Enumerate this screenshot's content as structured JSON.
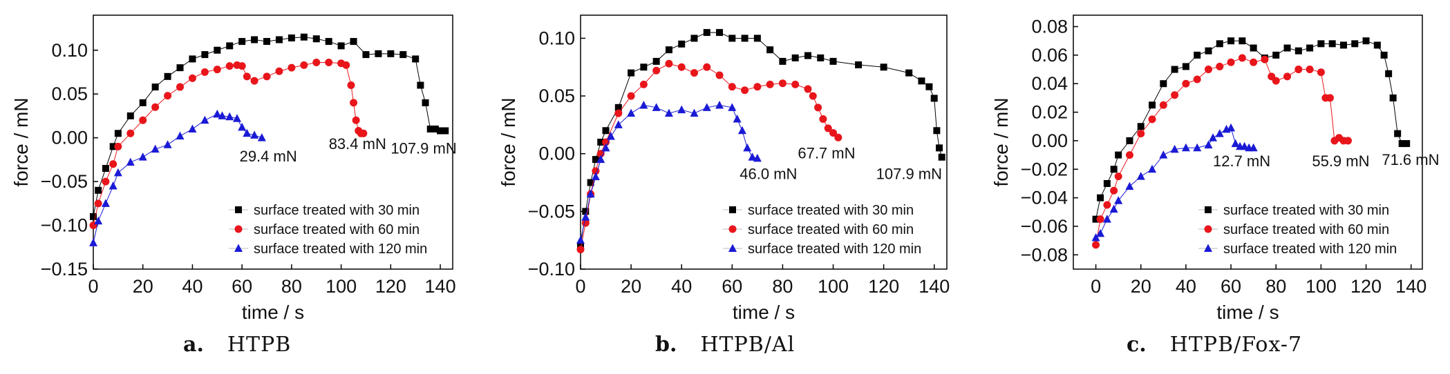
{
  "colors": {
    "s30": "#000000",
    "s60": "#e8151b",
    "s120": "#1a1ad6",
    "axis": "#000000"
  },
  "chart_data": [
    {
      "type": "scatter",
      "panel": "a.",
      "caption": "HTPB",
      "xlabel": "time / s",
      "ylabel": "force / mN",
      "xlim": [
        0,
        145
      ],
      "ylim": [
        -0.15,
        0.14
      ],
      "xticks": [
        0,
        20,
        40,
        60,
        80,
        100,
        120,
        140
      ],
      "yticks": [
        -0.15,
        -0.1,
        -0.05,
        0.0,
        0.05,
        0.1
      ],
      "ytick_labels": [
        "−0.15",
        "−0.10",
        "−0.05",
        "0.00",
        "0.05",
        "0.10"
      ],
      "legend": [
        "surface treated with 30 min",
        "surface treated with 60 min",
        "surface treated with 120 min"
      ],
      "legend_position": "bottom-right",
      "annotations": [
        {
          "text": "29.4 mN",
          "x": 59,
          "y": -0.027
        },
        {
          "text": "83.4 mN",
          "x": 95,
          "y": -0.013
        },
        {
          "text": "107.9 mN",
          "x": 120,
          "y": -0.018
        }
      ],
      "series": [
        {
          "name": "surface treated with 30 min",
          "marker": "square",
          "x": [
            0,
            2,
            5,
            8,
            10,
            15,
            20,
            25,
            30,
            35,
            40,
            45,
            50,
            55,
            60,
            65,
            70,
            75,
            80,
            85,
            90,
            95,
            100,
            105,
            110,
            115,
            120,
            125,
            130,
            132,
            134,
            136,
            138,
            140,
            142
          ],
          "y": [
            -0.09,
            -0.06,
            -0.035,
            -0.01,
            0.005,
            0.025,
            0.04,
            0.058,
            0.07,
            0.08,
            0.09,
            0.095,
            0.1,
            0.105,
            0.11,
            0.112,
            0.11,
            0.112,
            0.114,
            0.115,
            0.113,
            0.11,
            0.105,
            0.11,
            0.095,
            0.096,
            0.096,
            0.095,
            0.09,
            0.06,
            0.04,
            0.01,
            0.01,
            0.008,
            0.008
          ]
        },
        {
          "name": "surface treated with 60 min",
          "marker": "circle",
          "x": [
            0,
            2,
            5,
            8,
            10,
            15,
            20,
            25,
            30,
            35,
            40,
            45,
            50,
            55,
            58,
            60,
            62,
            65,
            70,
            75,
            80,
            85,
            90,
            95,
            100,
            102,
            104,
            105,
            106,
            107,
            108,
            109
          ],
          "y": [
            -0.1,
            -0.075,
            -0.05,
            -0.03,
            -0.01,
            0.005,
            0.02,
            0.035,
            0.048,
            0.058,
            0.068,
            0.075,
            0.078,
            0.082,
            0.083,
            0.082,
            0.07,
            0.065,
            0.07,
            0.076,
            0.08,
            0.083,
            0.086,
            0.086,
            0.085,
            0.083,
            0.06,
            0.04,
            0.02,
            0.008,
            0.005,
            0.005
          ]
        },
        {
          "name": "surface treated with 120 min",
          "marker": "triangle",
          "x": [
            0,
            2,
            5,
            8,
            10,
            15,
            20,
            25,
            30,
            35,
            40,
            45,
            50,
            52,
            55,
            58,
            60,
            62,
            65,
            68
          ],
          "y": [
            -0.12,
            -0.095,
            -0.075,
            -0.055,
            -0.04,
            -0.028,
            -0.022,
            -0.013,
            -0.008,
            0.002,
            0.01,
            0.02,
            0.027,
            0.025,
            0.024,
            0.022,
            0.012,
            0.005,
            0.003,
            0.0
          ]
        }
      ]
    },
    {
      "type": "scatter",
      "panel": "b.",
      "caption": "HTPB/Al",
      "xlabel": "time / s",
      "ylabel": "force / mN",
      "xlim": [
        0,
        145
      ],
      "ylim": [
        -0.1,
        0.12
      ],
      "xticks": [
        0,
        20,
        40,
        60,
        80,
        100,
        120,
        140
      ],
      "yticks": [
        -0.1,
        -0.05,
        0.0,
        0.05,
        0.1
      ],
      "ytick_labels": [
        "−0.10",
        "−0.05",
        "0.00",
        "0.05",
        "0.10"
      ],
      "legend": [
        "surface treated with 30 min",
        "surface treated with 60 min",
        "surface treated with 120 min"
      ],
      "legend_position": "bottom-right",
      "annotations": [
        {
          "text": "46.0  mN",
          "x": 63,
          "y": -0.022
        },
        {
          "text": "67.7 mN",
          "x": 86,
          "y": -0.004
        },
        {
          "text": "107.9 mN",
          "x": 117,
          "y": -0.022
        }
      ],
      "series": [
        {
          "name": "surface treated with 30 min",
          "marker": "square",
          "x": [
            0,
            2,
            4,
            6,
            8,
            10,
            15,
            20,
            25,
            30,
            35,
            40,
            45,
            50,
            55,
            60,
            65,
            70,
            75,
            80,
            85,
            90,
            95,
            100,
            110,
            120,
            130,
            135,
            138,
            140,
            141,
            142,
            143
          ],
          "y": [
            -0.08,
            -0.05,
            -0.025,
            -0.005,
            0.01,
            0.02,
            0.04,
            0.07,
            0.075,
            0.08,
            0.09,
            0.095,
            0.1,
            0.105,
            0.105,
            0.1,
            0.1,
            0.1,
            0.09,
            0.08,
            0.083,
            0.085,
            0.083,
            0.08,
            0.077,
            0.075,
            0.07,
            0.063,
            0.058,
            0.048,
            0.02,
            0.005,
            -0.003
          ]
        },
        {
          "name": "surface treated with 60 min",
          "marker": "circle",
          "x": [
            0,
            2,
            4,
            6,
            8,
            10,
            15,
            20,
            25,
            30,
            35,
            40,
            45,
            50,
            55,
            60,
            65,
            70,
            75,
            80,
            85,
            90,
            92,
            94,
            96,
            98,
            100,
            102
          ],
          "y": [
            -0.083,
            -0.06,
            -0.035,
            -0.015,
            0.0,
            0.01,
            0.035,
            0.05,
            0.06,
            0.072,
            0.078,
            0.075,
            0.07,
            0.075,
            0.068,
            0.058,
            0.055,
            0.058,
            0.06,
            0.061,
            0.06,
            0.056,
            0.05,
            0.04,
            0.03,
            0.022,
            0.018,
            0.014
          ]
        },
        {
          "name": "surface treated with 120 min",
          "marker": "triangle",
          "x": [
            0,
            2,
            4,
            6,
            8,
            10,
            12,
            15,
            20,
            25,
            30,
            35,
            40,
            45,
            50,
            55,
            60,
            62,
            64,
            66,
            68,
            70
          ],
          "y": [
            -0.075,
            -0.055,
            -0.035,
            -0.02,
            -0.005,
            0.005,
            0.015,
            0.025,
            0.035,
            0.042,
            0.04,
            0.035,
            0.038,
            0.035,
            0.04,
            0.042,
            0.04,
            0.03,
            0.02,
            0.005,
            -0.003,
            -0.004
          ]
        }
      ]
    },
    {
      "type": "scatter",
      "panel": "c.",
      "caption": "HTPB/Fox-7",
      "xlabel": "time / s",
      "ylabel": "force / mN",
      "xlim": [
        -10,
        145
      ],
      "ylim": [
        -0.09,
        0.088
      ],
      "xticks": [
        0,
        20,
        40,
        60,
        80,
        100,
        120,
        140
      ],
      "yticks": [
        -0.08,
        -0.06,
        -0.04,
        -0.02,
        0.0,
        0.02,
        0.04,
        0.06,
        0.08
      ],
      "ytick_labels": [
        "−0.08",
        "−0.06",
        "−0.04",
        "−0.02",
        "0.00",
        "0.02",
        "0.04",
        "0.06",
        "0.08"
      ],
      "legend": [
        "surface treated with 30 min",
        "surface treated with 60 min",
        "surface treated with 120 min"
      ],
      "legend_position": "bottom-right",
      "annotations": [
        {
          "text": "12.7 mN",
          "x": 52,
          "y": -0.018
        },
        {
          "text": "55.9 mN",
          "x": 96,
          "y": -0.018
        },
        {
          "text": "71.6 mN",
          "x": 127,
          "y": -0.017
        }
      ],
      "series": [
        {
          "name": "surface treated with 30 min",
          "marker": "square",
          "x": [
            0,
            2,
            5,
            8,
            10,
            15,
            20,
            25,
            30,
            35,
            40,
            45,
            50,
            55,
            60,
            65,
            70,
            75,
            80,
            85,
            90,
            95,
            100,
            105,
            110,
            115,
            120,
            125,
            128,
            130,
            132,
            134,
            136,
            138
          ],
          "y": [
            -0.055,
            -0.04,
            -0.03,
            -0.02,
            -0.01,
            0.0,
            0.01,
            0.025,
            0.04,
            0.05,
            0.052,
            0.06,
            0.063,
            0.068,
            0.07,
            0.07,
            0.065,
            0.058,
            0.06,
            0.065,
            0.063,
            0.065,
            0.068,
            0.068,
            0.067,
            0.068,
            0.07,
            0.067,
            0.06,
            0.047,
            0.03,
            0.005,
            -0.002,
            -0.002
          ]
        },
        {
          "name": "surface treated with 60 min",
          "marker": "circle",
          "x": [
            0,
            2,
            5,
            8,
            10,
            15,
            20,
            25,
            30,
            35,
            40,
            45,
            50,
            55,
            60,
            65,
            70,
            75,
            78,
            80,
            85,
            90,
            95,
            100,
            102,
            104,
            106,
            108,
            110,
            112
          ],
          "y": [
            -0.073,
            -0.055,
            -0.045,
            -0.035,
            -0.025,
            -0.01,
            0.005,
            0.015,
            0.025,
            0.032,
            0.04,
            0.043,
            0.05,
            0.052,
            0.055,
            0.058,
            0.055,
            0.057,
            0.045,
            0.042,
            0.045,
            0.05,
            0.05,
            0.048,
            0.03,
            0.03,
            0.0,
            0.002,
            0.0,
            0.0
          ]
        },
        {
          "name": "surface treated with 120 min",
          "marker": "triangle",
          "x": [
            0,
            2,
            5,
            8,
            10,
            15,
            20,
            25,
            30,
            35,
            40,
            45,
            50,
            52,
            55,
            58,
            60,
            62,
            64,
            66,
            68,
            70
          ],
          "y": [
            -0.068,
            -0.065,
            -0.055,
            -0.048,
            -0.042,
            -0.032,
            -0.025,
            -0.02,
            -0.01,
            -0.006,
            -0.005,
            -0.005,
            -0.003,
            0.002,
            0.005,
            0.008,
            0.009,
            -0.002,
            -0.004,
            -0.004,
            -0.005,
            -0.005
          ]
        }
      ]
    }
  ]
}
